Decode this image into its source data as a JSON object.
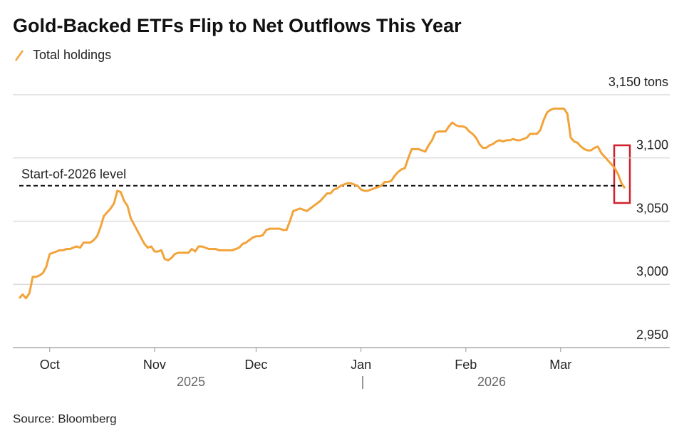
{
  "chart_data": {
    "type": "line",
    "title": "Gold-Backed ETFs Flip to Net Outflows This Year",
    "source": "Source: Bloomberg",
    "categories": [
      null,
      null,
      null,
      null,
      null,
      null,
      null,
      null,
      null,
      "Oct",
      null,
      null,
      null,
      null,
      null,
      null,
      null,
      null,
      null,
      null,
      null,
      null,
      null,
      null,
      null,
      null,
      null,
      null,
      null,
      null,
      null,
      null,
      null,
      null,
      null,
      null,
      null,
      null,
      null,
      null,
      "Nov",
      null,
      null,
      null,
      null,
      null,
      null,
      null,
      null,
      null,
      null,
      null,
      null,
      null,
      null,
      null,
      null,
      null,
      null,
      null,
      null,
      null,
      null,
      null,
      null,
      null,
      null,
      null,
      null,
      null,
      "Dec",
      null,
      null,
      null,
      null,
      null,
      null,
      null,
      null,
      null,
      null,
      null,
      null,
      null,
      null,
      null,
      null,
      null,
      null,
      null,
      null,
      null,
      null,
      null,
      null,
      null,
      null,
      null,
      null,
      null,
      null,
      "Jan",
      null,
      null,
      null,
      null,
      null,
      null,
      null,
      null,
      null,
      null,
      null,
      null,
      null,
      null,
      null,
      null,
      null,
      null,
      null,
      null,
      null,
      null,
      null,
      null,
      null,
      null,
      null,
      null,
      null,
      null,
      "Feb",
      null,
      null,
      null,
      null,
      null,
      null,
      null,
      null,
      null,
      null,
      null,
      null,
      null,
      null,
      null,
      null,
      null,
      null,
      null,
      null,
      null,
      null,
      null,
      null,
      null,
      null,
      null,
      "Mar",
      null,
      null,
      null,
      null,
      null,
      null,
      null,
      null,
      null,
      null,
      null,
      null,
      null,
      null,
      null,
      null,
      null,
      null,
      null
    ],
    "year_labels": [
      "2025",
      "2026"
    ],
    "series": [
      {
        "name": "Total holdings",
        "color": "#f2a33a",
        "values": [
          2989,
          2992,
          2989,
          2993,
          3006,
          3006,
          3007,
          3009,
          3014,
          3024,
          3025,
          3026,
          3027,
          3027,
          3028,
          3028,
          3029,
          3030,
          3029,
          3033,
          3033,
          3033,
          3035,
          3038,
          3045,
          3054,
          3057,
          3060,
          3064,
          3074,
          3073,
          3066,
          3062,
          3052,
          3047,
          3042,
          3037,
          3032,
          3029,
          3030,
          3026,
          3026,
          3027,
          3020,
          3019,
          3021,
          3024,
          3025,
          3025,
          3025,
          3025,
          3028,
          3026,
          3030,
          3030,
          3029,
          3028,
          3028,
          3028,
          3027,
          3027,
          3027,
          3027,
          3027,
          3028,
          3029,
          3032,
          3033,
          3035,
          3037,
          3038,
          3038,
          3039,
          3043,
          3044,
          3044,
          3044,
          3044,
          3043,
          3043,
          3050,
          3058,
          3059,
          3060,
          3059,
          3058,
          3060,
          3062,
          3064,
          3066,
          3069,
          3072,
          3072,
          3075,
          3076,
          3078,
          3079,
          3080,
          3080,
          3079,
          3078,
          3075,
          3074,
          3074,
          3075,
          3076,
          3077,
          3078,
          3081,
          3081,
          3082,
          3086,
          3089,
          3091,
          3092,
          3100,
          3107,
          3107,
          3107,
          3106,
          3105,
          3110,
          3114,
          3120,
          3121,
          3121,
          3121,
          3125,
          3128,
          3126,
          3125,
          3125,
          3124,
          3121,
          3119,
          3116,
          3111,
          3108,
          3108,
          3110,
          3111,
          3113,
          3114,
          3113,
          3114,
          3114,
          3115,
          3114,
          3114,
          3115,
          3116,
          3119,
          3119,
          3119,
          3122,
          3130,
          3136,
          3138,
          3139,
          3139,
          3139,
          3139,
          3135,
          3116,
          3113,
          3112,
          3109,
          3107,
          3106,
          3106,
          3108,
          3109,
          3104,
          3101,
          3098,
          3095,
          3092,
          3087,
          3080,
          3076
        ]
      }
    ],
    "reference_line": {
      "value": 3078,
      "label": "Start-of-2026 level"
    },
    "ylim": [
      2950,
      3150
    ],
    "yticks": [
      {
        "value": 2950,
        "label": "2,950"
      },
      {
        "value": 3000,
        "label": "3,000"
      },
      {
        "value": 3050,
        "label": "3,050"
      },
      {
        "value": 3100,
        "label": "3,100"
      },
      {
        "value": 3150,
        "label": "3,150 tons"
      }
    ],
    "grid": true
  }
}
